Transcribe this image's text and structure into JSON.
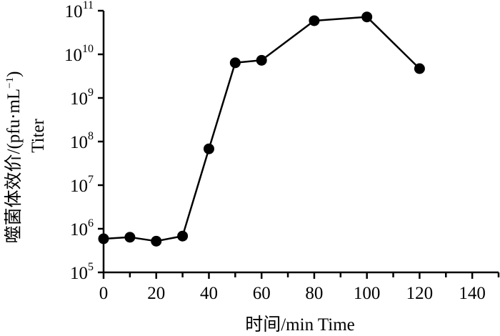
{
  "chart_data": {
    "type": "line",
    "title": "",
    "xlabel": "时间/min  Time",
    "ylabel_cn": "噬菌体效价/(pfu·mL",
    "ylabel_cn_sup": "−1",
    "ylabel_cn_close": ")",
    "ylabel_en": "Titer",
    "xlim": [
      0,
      150
    ],
    "x_ticks": [
      0,
      20,
      40,
      60,
      80,
      100,
      120,
      140
    ],
    "x_minor_ticks": [
      10,
      30,
      50,
      70,
      90,
      110,
      130,
      150
    ],
    "y_scale": "log",
    "ylim": [
      100000,
      100000000000
    ],
    "y_ticks": [
      {
        "base": "10",
        "exp": "5",
        "value": 100000
      },
      {
        "base": "10",
        "exp": "6",
        "value": 1000000
      },
      {
        "base": "10",
        "exp": "7",
        "value": 10000000
      },
      {
        "base": "10",
        "exp": "8",
        "value": 100000000
      },
      {
        "base": "10",
        "exp": "9",
        "value": 1000000000
      },
      {
        "base": "10",
        "exp": "10",
        "value": 10000000000
      },
      {
        "base": "10",
        "exp": "11",
        "value": 100000000000
      }
    ],
    "grid": false,
    "legend": "none",
    "series": [
      {
        "x": [
          0,
          10,
          20,
          30,
          40,
          50,
          60,
          80,
          100,
          120
        ],
        "y": [
          590000,
          640000,
          520000,
          680000,
          68000000,
          6400000000,
          7300000000,
          59000000000,
          72000000000,
          4700000000
        ]
      }
    ],
    "colors": {
      "line": "#000000",
      "marker": "#000000",
      "axis": "#000000"
    }
  }
}
